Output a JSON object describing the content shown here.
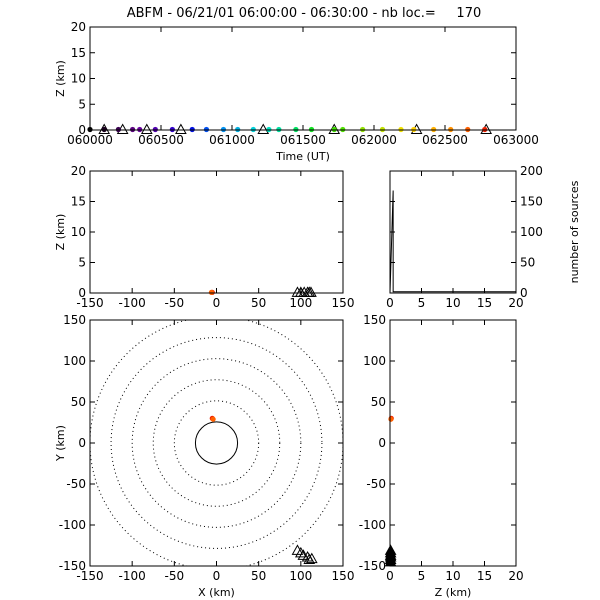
{
  "title": "ABFM - 06/21/01 06:00:00 - 06:30:00 - nb loc.=     170",
  "chart_data": [
    {
      "id": "time_height",
      "type": "scatter",
      "xlabel": "Time (UT)",
      "ylabel": "Z (km)",
      "xlim": [
        60000,
        63000
      ],
      "ylim": [
        0,
        20
      ],
      "xticks": [
        "060000",
        "060500",
        "061000",
        "061500",
        "062000",
        "062500",
        "063000"
      ],
      "yticks": [
        "0",
        "5",
        "10",
        "15",
        "20"
      ],
      "points": [
        {
          "x": 60000,
          "y": 0.1,
          "color": "#000000"
        },
        {
          "x": 60100,
          "y": 0.1,
          "color": "#1a0020"
        },
        {
          "x": 60200,
          "y": 0.1,
          "color": "#3a0050"
        },
        {
          "x": 60300,
          "y": 0.1,
          "color": "#5a0080"
        },
        {
          "x": 60350,
          "y": 0.1,
          "color": "#6a00a0"
        },
        {
          "x": 60460,
          "y": 0.1,
          "color": "#5000b0"
        },
        {
          "x": 60580,
          "y": 0.1,
          "color": "#3000c8"
        },
        {
          "x": 60720,
          "y": 0.1,
          "color": "#0010e0"
        },
        {
          "x": 60820,
          "y": 0.1,
          "color": "#0050f0"
        },
        {
          "x": 60940,
          "y": 0.1,
          "color": "#0090f0"
        },
        {
          "x": 61040,
          "y": 0.1,
          "color": "#00b0e0"
        },
        {
          "x": 61150,
          "y": 0.1,
          "color": "#00d0d8"
        },
        {
          "x": 61260,
          "y": 0.1,
          "color": "#00e0c0"
        },
        {
          "x": 61330,
          "y": 0.1,
          "color": "#00e0a0"
        },
        {
          "x": 61450,
          "y": 0.1,
          "color": "#00e060"
        },
        {
          "x": 61560,
          "y": 0.1,
          "color": "#10e020"
        },
        {
          "x": 61720,
          "y": 0.1,
          "color": "#40e000"
        },
        {
          "x": 61780,
          "y": 0.1,
          "color": "#50e000"
        },
        {
          "x": 61920,
          "y": 0.1,
          "color": "#90e000"
        },
        {
          "x": 62060,
          "y": 0.1,
          "color": "#c0e000"
        },
        {
          "x": 62190,
          "y": 0.1,
          "color": "#f0e000"
        },
        {
          "x": 62280,
          "y": 0.1,
          "color": "#ffd000"
        },
        {
          "x": 62420,
          "y": 0.1,
          "color": "#ffb000"
        },
        {
          "x": 62540,
          "y": 0.1,
          "color": "#ff9000"
        },
        {
          "x": 62660,
          "y": 0.1,
          "color": "#ff6000"
        },
        {
          "x": 62780,
          "y": 0.1,
          "color": "#ee2000"
        }
      ],
      "triangles": [
        {
          "x": 60100,
          "y": 0.1
        },
        {
          "x": 60230,
          "y": 0.1
        },
        {
          "x": 60400,
          "y": 0.1
        },
        {
          "x": 60640,
          "y": 0.1
        },
        {
          "x": 61220,
          "y": 0.1
        },
        {
          "x": 61720,
          "y": 0.1
        },
        {
          "x": 62300,
          "y": 0.1
        },
        {
          "x": 62790,
          "y": 0.1
        }
      ]
    },
    {
      "id": "x_height",
      "type": "scatter",
      "xlabel": "",
      "ylabel": "Z (km)",
      "xlim": [
        -150,
        150
      ],
      "ylim": [
        0,
        20
      ],
      "xticks": [
        "-150",
        "-100",
        "-50",
        "0",
        "50",
        "100",
        "150"
      ],
      "yticks": [
        "0",
        "5",
        "10",
        "15",
        "20"
      ],
      "points": [
        {
          "x": -5,
          "y": 0.1,
          "color": "#ee2000"
        },
        {
          "x": -6,
          "y": 0.1,
          "color": "#ff6000"
        }
      ],
      "triangles": [
        {
          "x": 96,
          "y": 0.1
        },
        {
          "x": 100,
          "y": 0.1
        },
        {
          "x": 104,
          "y": 0.1
        },
        {
          "x": 108,
          "y": 0.1
        },
        {
          "x": 110,
          "y": 0.1
        },
        {
          "x": 112,
          "y": 0.1
        }
      ]
    },
    {
      "id": "height_histogram",
      "type": "line",
      "xlabel": "",
      "ylabel": "number of sources",
      "xlim": [
        0,
        20
      ],
      "ylim": [
        0,
        200
      ],
      "xticks": [
        "0",
        "5",
        "10",
        "15",
        "20"
      ],
      "yticks": [
        "0",
        "50",
        "100",
        "150",
        "200"
      ],
      "x": [
        0,
        0.5,
        0.5,
        20
      ],
      "y": [
        0,
        168,
        2,
        2
      ]
    },
    {
      "id": "plan_view",
      "type": "scatter",
      "xlabel": "X (km)",
      "ylabel": "Y (km)",
      "xlim": [
        -150,
        150
      ],
      "ylim": [
        -150,
        150
      ],
      "xticks": [
        "-150",
        "-100",
        "-50",
        "0",
        "50",
        "100",
        "150"
      ],
      "yticks": [
        "-150",
        "-100",
        "-50",
        "0",
        "50",
        "100",
        "150"
      ],
      "range_rings_km": [
        50,
        75,
        100,
        125,
        150
      ],
      "points": [
        {
          "x": -5,
          "y": 30,
          "color": "#ee2000"
        },
        {
          "x": -4,
          "y": 29,
          "color": "#ff6000"
        }
      ],
      "triangles": [
        {
          "x": 96,
          "y": -131
        },
        {
          "x": 100,
          "y": -134
        },
        {
          "x": 103,
          "y": -137
        },
        {
          "x": 108,
          "y": -139
        },
        {
          "x": 110,
          "y": -142
        },
        {
          "x": 113,
          "y": -141
        }
      ]
    },
    {
      "id": "height_y",
      "type": "scatter",
      "xlabel": "Z (km)",
      "ylabel": "",
      "xlim": [
        0,
        20
      ],
      "ylim": [
        -150,
        150
      ],
      "xticks": [
        "0",
        "5",
        "10",
        "15",
        "20"
      ],
      "yticks": [
        "-150",
        "-100",
        "-50",
        "0",
        "50",
        "100",
        "150"
      ],
      "points": [
        {
          "x": 0.2,
          "y": 30,
          "color": "#ee2000"
        },
        {
          "x": 0.15,
          "y": 29,
          "color": "#ff6000"
        }
      ],
      "triangles": [
        {
          "x": 0.1,
          "y": -131
        },
        {
          "x": 0.1,
          "y": -134
        },
        {
          "x": 0.1,
          "y": -137
        },
        {
          "x": 0.1,
          "y": -139
        },
        {
          "x": 0.1,
          "y": -142
        },
        {
          "x": 0.1,
          "y": -145
        }
      ]
    }
  ]
}
